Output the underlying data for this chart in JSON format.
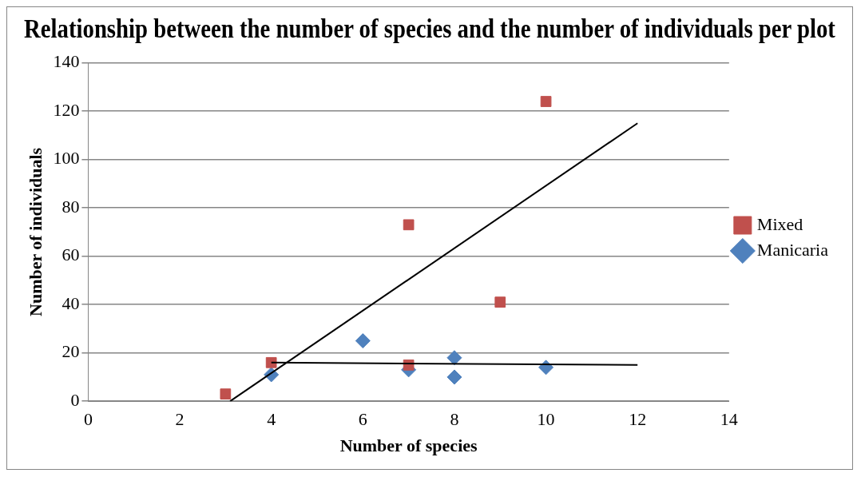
{
  "chart_data": {
    "type": "scatter",
    "title": "Relationship between the number of species and the number of individuals per plot",
    "xlabel": "Number of species",
    "ylabel": "Number of individuals",
    "xlim": [
      0,
      14
    ],
    "xticks": [
      0,
      2,
      4,
      6,
      8,
      10,
      12,
      14
    ],
    "ylim": [
      0,
      140
    ],
    "yticks": [
      0,
      20,
      40,
      60,
      80,
      100,
      120,
      140
    ],
    "grid": "y",
    "legend": "right",
    "series": [
      {
        "name": "Manicaria",
        "color": "#4f81bd",
        "marker": "diamond",
        "x": [
          4,
          6,
          7,
          8,
          8,
          10
        ],
        "values": [
          11,
          25,
          13,
          18,
          10,
          14
        ]
      },
      {
        "name": "Mixed",
        "color": "#c0504d",
        "marker": "square",
        "x": [
          3,
          4,
          7,
          7,
          9,
          10
        ],
        "values": [
          3,
          16,
          73,
          15,
          41,
          124
        ]
      },
      {
        "type": "line",
        "color": "#000000",
        "marker": "none",
        "x": [
          4,
          12
        ],
        "values": [
          16,
          15
        ]
      },
      {
        "type": "line",
        "color": "#000000",
        "marker": "none",
        "x": [
          3.1,
          12
        ],
        "values": [
          0,
          115
        ]
      }
    ]
  }
}
